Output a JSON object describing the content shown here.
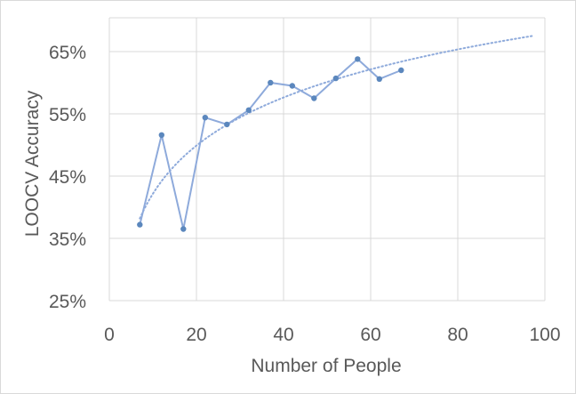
{
  "chart_data": {
    "type": "line",
    "title": "",
    "xlabel": "Number of People",
    "ylabel": "LOOCV Accuracy",
    "xlim": [
      0,
      100
    ],
    "ylim": [
      25,
      65
    ],
    "x_ticks": [
      0,
      20,
      40,
      60,
      80,
      100
    ],
    "y_ticks": [
      25,
      35,
      45,
      55,
      65
    ],
    "x_tick_labels": [
      "0",
      "20",
      "40",
      "60",
      "80",
      "100"
    ],
    "y_tick_labels": [
      "25%",
      "35%",
      "45%",
      "55%",
      "65%"
    ],
    "grid": true,
    "legend": "none",
    "series": [
      {
        "style": "solid line with markers",
        "color": "#5b87bd",
        "x": [
          7,
          12,
          17,
          22,
          27,
          32,
          37,
          42,
          47,
          52,
          57,
          62,
          67
        ],
        "y": [
          37.2,
          51.6,
          36.5,
          54.4,
          53.3,
          55.6,
          60.0,
          59.5,
          57.5,
          60.7,
          63.8,
          60.6,
          62.0
        ]
      }
    ],
    "trendline": {
      "type": "logarithmic",
      "style": "dotted",
      "color": "#8eaadb",
      "x_range": [
        7,
        97
      ],
      "y_range": [
        38.2,
        67.5
      ]
    }
  }
}
